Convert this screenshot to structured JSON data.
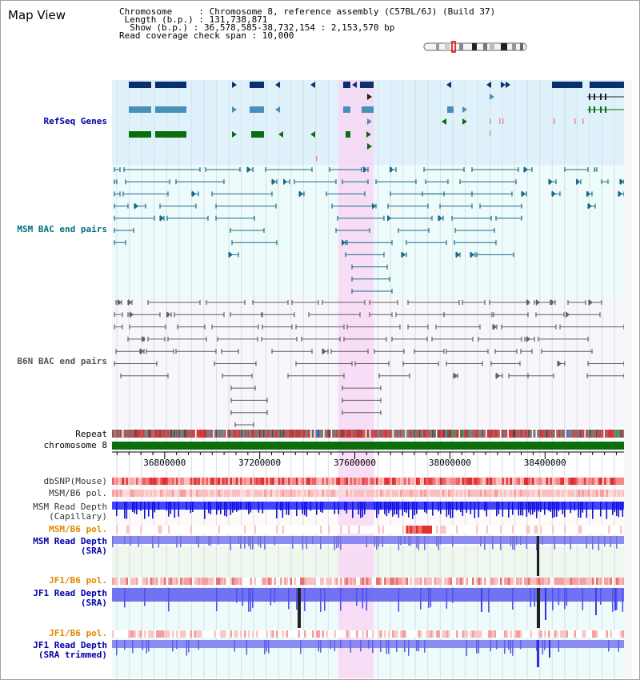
{
  "view": {
    "title": "Map View",
    "chromosome_line": "Chromosome     : Chromosome 8, reference assembly (C57BL/6J) (Build 37)",
    "length_line": " Length (b.p.) : 131,738,871",
    "show_line": "  Show (b.p.) : 36,578,585-38,732,154 : 2,153,570 bp",
    "coverage_line": "Read coverage check span : 10,000"
  },
  "colors": {
    "refseq_bg": "#dff2fb",
    "msm_bg": "#eefbfb",
    "b6n_bg": "#f6f6fb",
    "highlight": "#f8d8f4",
    "gene_dark": "#0a2f6e",
    "gene_mid": "#4a8fb8",
    "gene_green": "#0a6e0a",
    "msm_pair": "#1a6a88",
    "b6n_pair": "#606060",
    "chromosome_bar": "#0a6e0a"
  },
  "tracks": {
    "refseq": "RefSeq Genes",
    "msm_bac": "MSM BAC end pairs",
    "b6n_bac": "B6N BAC end pairs",
    "repeat": "Repeat",
    "chromosome": "chromosome 8",
    "dbsnp": "dbSNP(Mouse)",
    "msm_b6_pol_1": "MSM/B6 pol.",
    "msm_read_depth_cap_1": "MSM Read Depth",
    "msm_read_depth_cap_2": "(Capillary)",
    "msm_b6_pol_2": "MSM/B6 pol.",
    "msm_read_depth_sra_1": "MSM Read Depth",
    "msm_read_depth_sra_2": "(SRA)",
    "jf1_b6_pol_1": "JF1/B6 pol.",
    "jf1_read_depth_sra_1": "JF1 Read Depth",
    "jf1_read_depth_sra_2": "(SRA)",
    "jf1_b6_pol_2": "JF1/B6 pol.",
    "jf1_read_depth_trim_1": "JF1 Read Depth",
    "jf1_read_depth_trim_2": "(SRA trimmed)"
  },
  "axis": {
    "range": [
      36578585,
      38732154
    ],
    "tick_labels": [
      "36800000",
      "37200000",
      "37600000",
      "38000000",
      "38400000"
    ],
    "tick_values": [
      36800000,
      37200000,
      37600000,
      38000000,
      38400000
    ],
    "highlight_range": [
      37530000,
      37680000
    ]
  }
}
